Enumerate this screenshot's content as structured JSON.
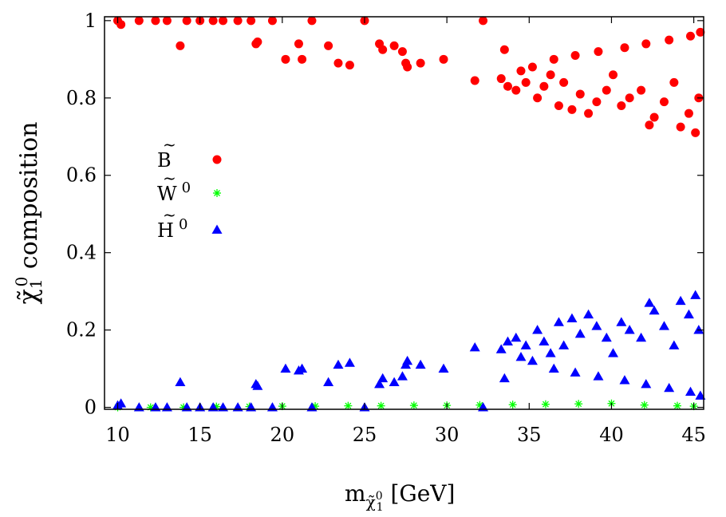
{
  "chart_data": {
    "type": "scatter",
    "title": "",
    "xlabel": "m",
    "xlabel_sub": "χ̃",
    "xlabel_sub_sup": "0",
    "xlabel_sub_sub": "1",
    "xlabel_unit": "[GeV]",
    "ylabel_symbol": "χ̃",
    "ylabel_sup": "0",
    "ylabel_sub": "1",
    "ylabel_text": "composition",
    "xlim": [
      9.2,
      45.6
    ],
    "ylim": [
      -0.005,
      1.01
    ],
    "xticks": [
      10,
      15,
      20,
      25,
      30,
      35,
      40,
      45
    ],
    "yticks": [
      0,
      0.2,
      0.4,
      0.6,
      0.8,
      1
    ],
    "ytick_labels": [
      "0",
      "0.2",
      "0.4",
      "0.6",
      "0.8",
      "1"
    ],
    "legend_position": "left-middle",
    "series": [
      {
        "name": "B̃",
        "marker": "circle",
        "color": "#ff0000",
        "points": [
          [
            10,
            1.0
          ],
          [
            10.2,
            0.99
          ],
          [
            11.3,
            1.0
          ],
          [
            12.3,
            1.0
          ],
          [
            13,
            1.0
          ],
          [
            13.8,
            0.935
          ],
          [
            14.2,
            1.0
          ],
          [
            15,
            1.0
          ],
          [
            15.8,
            1.0
          ],
          [
            16.4,
            1.0
          ],
          [
            17.3,
            1.0
          ],
          [
            18.1,
            1.0
          ],
          [
            18.4,
            0.94
          ],
          [
            18.5,
            0.945
          ],
          [
            19.4,
            1.0
          ],
          [
            20.2,
            0.9
          ],
          [
            21,
            0.94
          ],
          [
            21.2,
            0.9
          ],
          [
            21.8,
            1.0
          ],
          [
            22.8,
            0.935
          ],
          [
            23.4,
            0.89
          ],
          [
            24.1,
            0.885
          ],
          [
            25,
            1.0
          ],
          [
            25.9,
            0.94
          ],
          [
            26.1,
            0.925
          ],
          [
            26.8,
            0.935
          ],
          [
            27.3,
            0.92
          ],
          [
            27.5,
            0.89
          ],
          [
            27.6,
            0.88
          ],
          [
            28.4,
            0.89
          ],
          [
            29.8,
            0.9
          ],
          [
            31.7,
            0.845
          ],
          [
            32.2,
            1.0
          ],
          [
            33.3,
            0.85
          ],
          [
            33.5,
            0.925
          ],
          [
            33.7,
            0.83
          ],
          [
            34.2,
            0.82
          ],
          [
            34.8,
            0.84
          ],
          [
            35.5,
            0.8
          ],
          [
            35.9,
            0.83
          ],
          [
            36.3,
            0.86
          ],
          [
            36.8,
            0.78
          ],
          [
            37.1,
            0.84
          ],
          [
            37.6,
            0.77
          ],
          [
            38.1,
            0.81
          ],
          [
            38.6,
            0.76
          ],
          [
            39.1,
            0.79
          ],
          [
            39.7,
            0.82
          ],
          [
            40.1,
            0.86
          ],
          [
            40.6,
            0.78
          ],
          [
            41.1,
            0.8
          ],
          [
            41.8,
            0.82
          ],
          [
            42.3,
            0.73
          ],
          [
            42.6,
            0.75
          ],
          [
            43.2,
            0.79
          ],
          [
            43.8,
            0.84
          ],
          [
            44.2,
            0.725
          ],
          [
            44.7,
            0.76
          ],
          [
            45.1,
            0.71
          ],
          [
            45.3,
            0.8
          ],
          [
            34.5,
            0.87
          ],
          [
            35.2,
            0.88
          ],
          [
            36.5,
            0.9
          ],
          [
            37.8,
            0.91
          ],
          [
            39.2,
            0.92
          ],
          [
            40.8,
            0.93
          ],
          [
            42.1,
            0.94
          ],
          [
            43.5,
            0.95
          ],
          [
            44.8,
            0.96
          ],
          [
            45.4,
            0.97
          ]
        ]
      },
      {
        "name": "W̃⁰",
        "marker": "star",
        "color": "#00ff00",
        "points": [
          [
            10,
            0.0
          ],
          [
            12,
            0.0
          ],
          [
            14,
            0.0
          ],
          [
            16,
            0.002
          ],
          [
            18,
            0.002
          ],
          [
            20,
            0.003
          ],
          [
            22,
            0.003
          ],
          [
            24,
            0.004
          ],
          [
            26,
            0.004
          ],
          [
            28,
            0.005
          ],
          [
            30,
            0.005
          ],
          [
            32,
            0.006
          ],
          [
            34,
            0.007
          ],
          [
            36,
            0.008
          ],
          [
            38,
            0.009
          ],
          [
            40,
            0.01
          ],
          [
            42,
            0.006
          ],
          [
            44,
            0.004
          ],
          [
            45,
            0.003
          ]
        ]
      },
      {
        "name": "H̃⁰",
        "marker": "triangle",
        "color": "#0000ff",
        "points": [
          [
            10,
            0.005
          ],
          [
            10.2,
            0.01
          ],
          [
            11.3,
            0.0
          ],
          [
            12.3,
            0.0
          ],
          [
            13,
            0.0
          ],
          [
            13.8,
            0.065
          ],
          [
            14.2,
            0.0
          ],
          [
            15,
            0.0
          ],
          [
            15.8,
            0.0
          ],
          [
            16.4,
            0.0
          ],
          [
            17.3,
            0.0
          ],
          [
            18.1,
            0.0
          ],
          [
            18.4,
            0.06
          ],
          [
            18.5,
            0.055
          ],
          [
            19.4,
            0.0
          ],
          [
            20.2,
            0.1
          ],
          [
            21,
            0.095
          ],
          [
            21.2,
            0.1
          ],
          [
            21.8,
            0.0
          ],
          [
            22.8,
            0.065
          ],
          [
            23.4,
            0.11
          ],
          [
            24.1,
            0.115
          ],
          [
            25,
            0.0
          ],
          [
            25.9,
            0.06
          ],
          [
            26.1,
            0.075
          ],
          [
            26.8,
            0.065
          ],
          [
            27.3,
            0.08
          ],
          [
            27.5,
            0.11
          ],
          [
            27.6,
            0.12
          ],
          [
            28.4,
            0.11
          ],
          [
            29.8,
            0.1
          ],
          [
            31.7,
            0.155
          ],
          [
            32.2,
            0.0
          ],
          [
            33.3,
            0.15
          ],
          [
            33.5,
            0.075
          ],
          [
            33.7,
            0.17
          ],
          [
            34.2,
            0.18
          ],
          [
            34.8,
            0.16
          ],
          [
            35.5,
            0.2
          ],
          [
            35.9,
            0.17
          ],
          [
            36.3,
            0.14
          ],
          [
            36.8,
            0.22
          ],
          [
            37.1,
            0.16
          ],
          [
            37.6,
            0.23
          ],
          [
            38.1,
            0.19
          ],
          [
            38.6,
            0.24
          ],
          [
            39.1,
            0.21
          ],
          [
            39.7,
            0.18
          ],
          [
            40.1,
            0.14
          ],
          [
            40.6,
            0.22
          ],
          [
            41.1,
            0.2
          ],
          [
            41.8,
            0.18
          ],
          [
            42.3,
            0.27
          ],
          [
            42.6,
            0.25
          ],
          [
            43.2,
            0.21
          ],
          [
            43.8,
            0.16
          ],
          [
            44.2,
            0.275
          ],
          [
            44.7,
            0.24
          ],
          [
            45.1,
            0.29
          ],
          [
            45.3,
            0.2
          ],
          [
            34.5,
            0.13
          ],
          [
            35.2,
            0.12
          ],
          [
            36.5,
            0.1
          ],
          [
            37.8,
            0.09
          ],
          [
            39.2,
            0.08
          ],
          [
            40.8,
            0.07
          ],
          [
            42.1,
            0.06
          ],
          [
            43.5,
            0.05
          ],
          [
            44.8,
            0.04
          ],
          [
            45.4,
            0.03
          ]
        ]
      }
    ]
  },
  "legend": {
    "entries": [
      {
        "base": "B",
        "sup": ""
      },
      {
        "base": "W",
        "sup": "0"
      },
      {
        "base": "H",
        "sup": "0"
      }
    ]
  }
}
